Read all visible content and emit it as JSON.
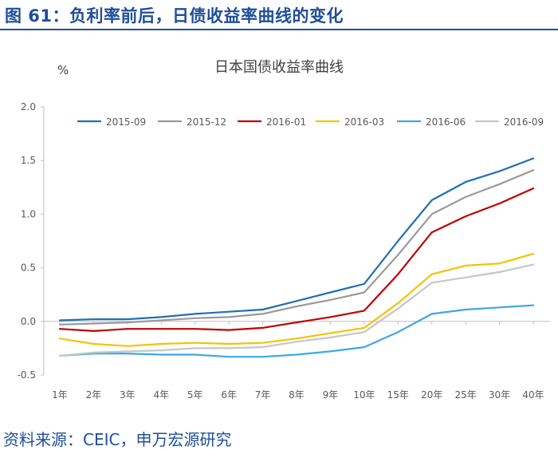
{
  "figure": {
    "title": "图 61：负利率前后，日债收益率曲线的变化",
    "source": "资料来源：CEIC，申万宏源研究"
  },
  "chart_data": {
    "type": "line",
    "title": "日本国债收益率曲线",
    "ylabel": "%",
    "xlabel": "",
    "categories": [
      "1年",
      "2年",
      "3年",
      "4年",
      "5年",
      "6年",
      "7年",
      "8年",
      "9年",
      "10年",
      "15年",
      "20年",
      "25年",
      "30年",
      "40年"
    ],
    "ylim": [
      -0.5,
      2.0
    ],
    "yticks": [
      "2.0",
      "1.5",
      "1.0",
      "0.5",
      "0.0",
      "-0.5"
    ],
    "ytick_values": [
      2.0,
      1.5,
      1.0,
      0.5,
      0.0,
      -0.5
    ],
    "grid": false,
    "legend_position": "top",
    "series": [
      {
        "name": "2015-09",
        "color": "#1f6fb5",
        "values": [
          0.01,
          0.02,
          0.02,
          0.04,
          0.07,
          0.09,
          0.11,
          0.19,
          0.27,
          0.35,
          0.75,
          1.13,
          1.3,
          1.4,
          1.52
        ]
      },
      {
        "name": "2015-12",
        "color": "#9a9a9a",
        "values": [
          -0.03,
          -0.02,
          -0.01,
          0.01,
          0.03,
          0.04,
          0.07,
          0.14,
          0.2,
          0.27,
          0.62,
          1.0,
          1.16,
          1.28,
          1.41
        ]
      },
      {
        "name": "2016-01",
        "color": "#c00000",
        "values": [
          -0.07,
          -0.09,
          -0.07,
          -0.07,
          -0.07,
          -0.08,
          -0.06,
          -0.01,
          0.04,
          0.1,
          0.44,
          0.83,
          0.98,
          1.1,
          1.24
        ]
      },
      {
        "name": "2016-03",
        "color": "#f5c200",
        "values": [
          -0.16,
          -0.21,
          -0.23,
          -0.21,
          -0.2,
          -0.21,
          -0.2,
          -0.16,
          -0.11,
          -0.06,
          0.17,
          0.44,
          0.52,
          0.54,
          0.63
        ]
      },
      {
        "name": "2016-06",
        "color": "#3fa7e8",
        "values": [
          -0.32,
          -0.3,
          -0.3,
          -0.31,
          -0.31,
          -0.33,
          -0.33,
          -0.31,
          -0.28,
          -0.24,
          -0.1,
          0.07,
          0.11,
          0.13,
          0.15
        ]
      },
      {
        "name": "2016-09",
        "color": "#c6c6c6",
        "values": [
          -0.32,
          -0.29,
          -0.28,
          -0.27,
          -0.25,
          -0.25,
          -0.24,
          -0.19,
          -0.15,
          -0.1,
          0.12,
          0.36,
          0.41,
          0.46,
          0.53
        ]
      }
    ]
  }
}
